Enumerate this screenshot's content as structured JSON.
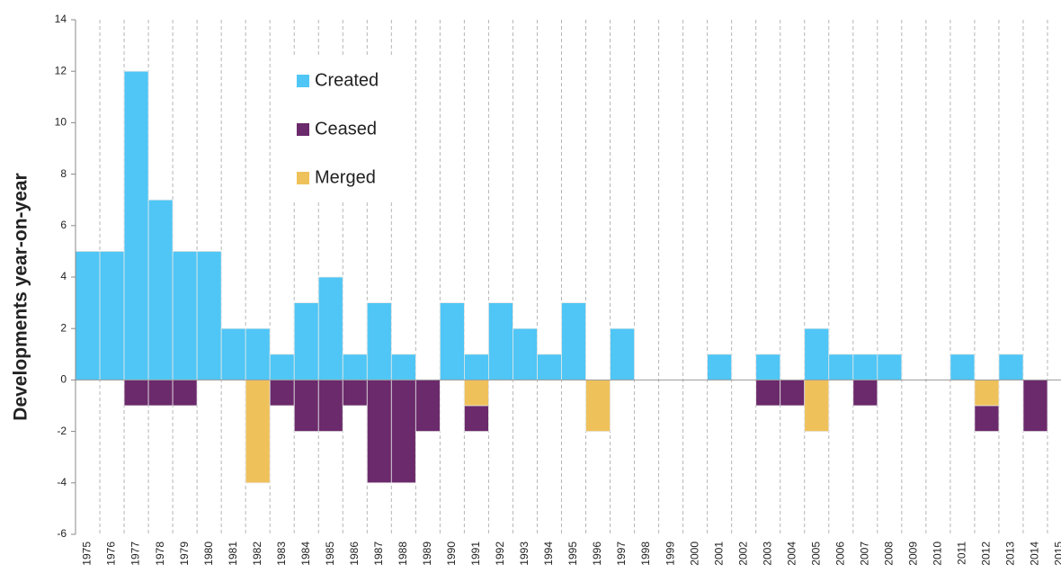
{
  "chart_data": {
    "type": "bar",
    "stacked": true,
    "y_axis_label": "Developments year-on-year",
    "categories": [
      "1975",
      "1976",
      "1977",
      "1978",
      "1979",
      "1980",
      "1981",
      "1982",
      "1983",
      "1984",
      "1985",
      "1986",
      "1987",
      "1988",
      "1989",
      "1990",
      "1991",
      "1992",
      "1993",
      "1994",
      "1995",
      "1996",
      "1997",
      "1998",
      "1999",
      "2000",
      "2001",
      "2002",
      "2003",
      "2004",
      "2005",
      "2006",
      "2007",
      "2008",
      "2009",
      "2010",
      "2011",
      "2012",
      "2013",
      "2014",
      "2015"
    ],
    "series": [
      {
        "name": "Created",
        "color": "#4fc6f5",
        "values": [
          5,
          5,
          12,
          7,
          5,
          5,
          2,
          2,
          1,
          3,
          4,
          1,
          3,
          1,
          0,
          3,
          1,
          3,
          2,
          1,
          3,
          0,
          2,
          0,
          0,
          0,
          1,
          0,
          1,
          0,
          2,
          1,
          1,
          1,
          0,
          0,
          1,
          0,
          1,
          0,
          0
        ]
      },
      {
        "name": "Merged",
        "color": "#efc15a",
        "values": [
          0,
          0,
          0,
          0,
          0,
          0,
          0,
          -4,
          0,
          0,
          0,
          0,
          0,
          0,
          0,
          0,
          -1,
          0,
          0,
          0,
          0,
          -2,
          0,
          0,
          0,
          0,
          0,
          0,
          0,
          0,
          -2,
          0,
          0,
          0,
          0,
          0,
          0,
          -1,
          0,
          0,
          0
        ]
      },
      {
        "name": "Ceased",
        "color": "#6b2a6b",
        "values": [
          0,
          0,
          -1,
          -1,
          -1,
          0,
          0,
          0,
          -1,
          -2,
          -2,
          -1,
          -4,
          -4,
          -2,
          0,
          -1,
          0,
          0,
          0,
          0,
          0,
          0,
          0,
          0,
          0,
          0,
          0,
          -1,
          -1,
          0,
          0,
          -1,
          0,
          0,
          0,
          0,
          -1,
          0,
          -2,
          0
        ]
      }
    ],
    "legend_order": [
      0,
      2,
      1
    ],
    "ylim": [
      -6,
      14
    ],
    "yticks": [
      -6,
      -4,
      -2,
      0,
      2,
      4,
      6,
      8,
      10,
      12,
      14
    ],
    "vertical_grid": true
  }
}
